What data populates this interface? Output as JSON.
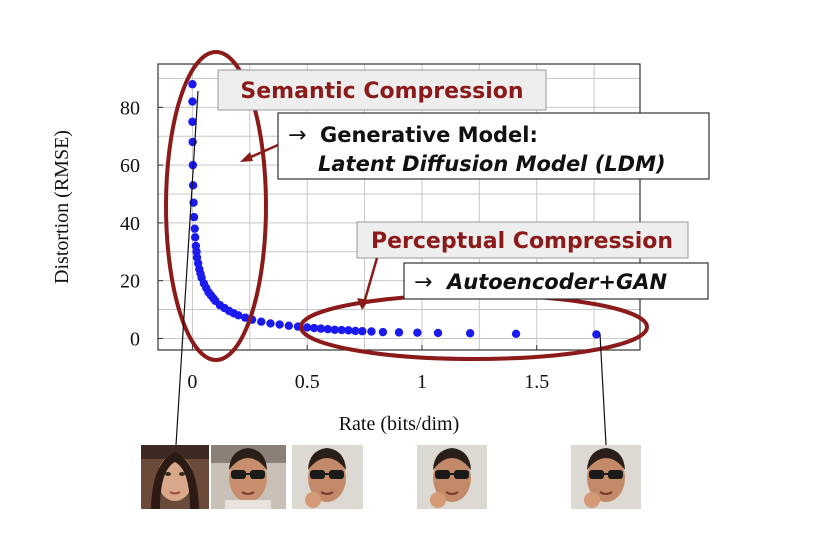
{
  "chart_data": {
    "type": "scatter",
    "xlabel": "Rate (bits/dim)",
    "ylabel": "Distortion (RMSE)",
    "xlim": [
      -0.15,
      1.95
    ],
    "ylim": [
      -4,
      95
    ],
    "xticks": [
      0,
      0.5,
      1,
      1.5
    ],
    "xtick_labels": [
      "0",
      "0.5",
      "1",
      "1.5"
    ],
    "yticks": [
      0,
      20,
      40,
      60,
      80
    ],
    "ytick_labels": [
      "0",
      "20",
      "40",
      "60",
      "80"
    ],
    "grid": true,
    "series": [
      {
        "color": "#1a1aee",
        "x": [
          0.0,
          0.0,
          0.0,
          0.001,
          0.002,
          0.003,
          0.005,
          0.007,
          0.01,
          0.012,
          0.015,
          0.018,
          0.02,
          0.025,
          0.03,
          0.035,
          0.04,
          0.05,
          0.06,
          0.07,
          0.08,
          0.09,
          0.1,
          0.12,
          0.14,
          0.16,
          0.18,
          0.2,
          0.23,
          0.26,
          0.3,
          0.34,
          0.38,
          0.42,
          0.46,
          0.5,
          0.53,
          0.56,
          0.59,
          0.62,
          0.65,
          0.68,
          0.71,
          0.74,
          0.78,
          0.83,
          0.9,
          0.98,
          1.07,
          1.21,
          1.41,
          1.76
        ],
        "y": [
          88,
          82,
          75,
          68,
          60,
          53,
          47,
          42,
          38,
          35,
          32,
          30,
          28,
          26,
          24,
          22.5,
          21,
          19,
          17.5,
          16,
          15,
          14,
          13,
          11.5,
          10.5,
          9.5,
          8.7,
          8,
          7.2,
          6.5,
          5.8,
          5.2,
          4.8,
          4.4,
          4.1,
          3.8,
          3.6,
          3.4,
          3.2,
          3.0,
          2.9,
          2.8,
          2.6,
          2.5,
          2.4,
          2.2,
          2.1,
          2.0,
          1.9,
          1.8,
          1.6,
          1.4
        ]
      }
    ],
    "annotations": {
      "semantic_title": "Semantic Compression",
      "semantic_arrow": "→",
      "semantic_line1": "Generative Model:",
      "semantic_line2": "Latent Diffusion Model (LDM)",
      "perceptual_title": "Perceptual Compression",
      "perceptual_arrow": "→",
      "perceptual_line1": "Autoencoder+GAN"
    }
  },
  "colors": {
    "highlight_red": "#8b1a1a",
    "points_blue": "#1a1aee",
    "grid": "#c8c8c8",
    "label_box_fill": "#eeeeee"
  },
  "thumbnails": [
    {
      "name": "face-woman-thumbnail"
    },
    {
      "name": "face-man-sunglasses-thumbnail-1"
    },
    {
      "name": "face-man-sunglasses-thumbnail-2"
    },
    {
      "name": "face-man-sunglasses-thumbnail-3"
    },
    {
      "name": "face-man-sunglasses-thumbnail-4"
    }
  ]
}
